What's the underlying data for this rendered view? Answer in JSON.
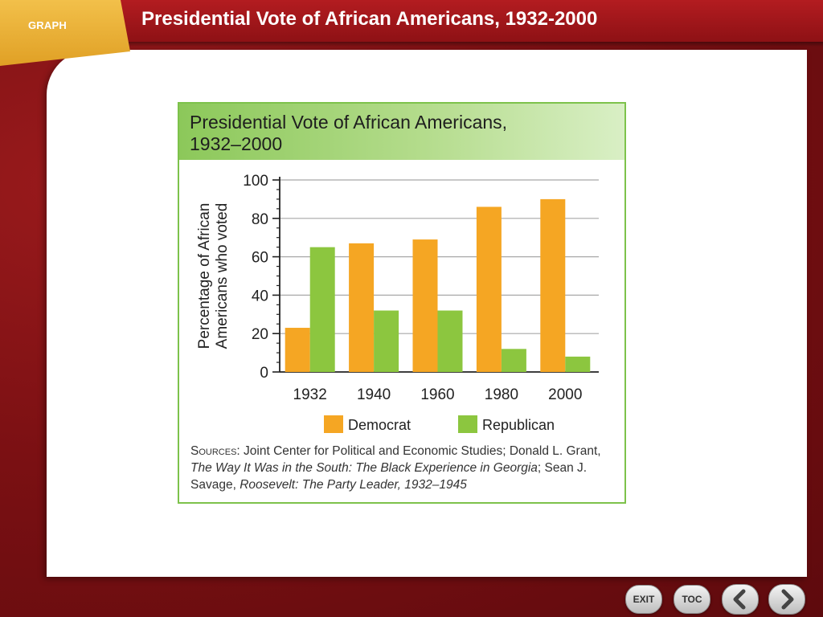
{
  "header": {
    "tab_label": "GRAPH",
    "title": "Presidential Vote of African Americans, 1932-2000"
  },
  "chart_data": {
    "type": "bar",
    "title": "Presidential Vote of African Americans, 1932–2000",
    "title_lines": [
      "Presidential Vote of African Americans,",
      "1932–2000"
    ],
    "ylabel_lines": [
      "Percentage of African",
      "Americans who voted"
    ],
    "categories": [
      "1932",
      "1940",
      "1960",
      "1980",
      "2000"
    ],
    "series": [
      {
        "name": "Democrat",
        "color": "#f5a623",
        "values": [
          23,
          67,
          69,
          86,
          90
        ]
      },
      {
        "name": "Republican",
        "color": "#8cc63f",
        "values": [
          65,
          32,
          32,
          12,
          8
        ]
      }
    ],
    "ylim": [
      0,
      100
    ],
    "yticks": [
      0,
      20,
      40,
      60,
      80,
      100
    ],
    "grid": true,
    "legend": "bottom"
  },
  "sources": {
    "label": "Sources",
    "part1": ": Joint Center for Political and Economic Studies; Donald L. Grant, ",
    "book1": "The Way It Was in the South: The Black Experience in Georgia",
    "part2": "; Sean J. Savage, ",
    "book2": "Roosevelt: The Party Leader, 1932–1945"
  },
  "nav": {
    "exit_label": "EXIT",
    "toc_label": "TOC",
    "prev_icon": "chevron-left-icon",
    "next_icon": "chevron-right-icon"
  }
}
